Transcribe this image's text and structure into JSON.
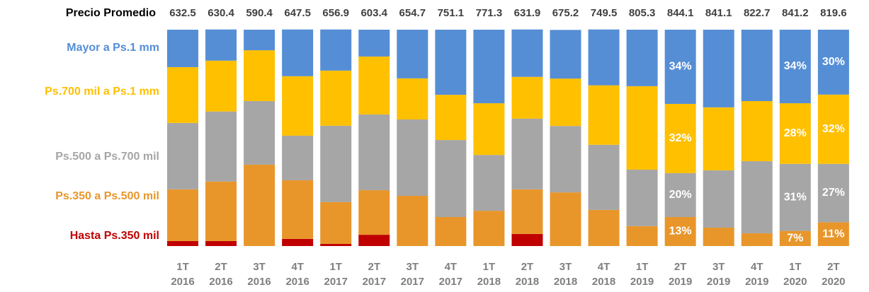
{
  "chart_data": {
    "type": "stacked_bar",
    "price_label": "Precio Promedio",
    "prices": [
      632.5,
      630.4,
      590.4,
      647.5,
      656.9,
      603.4,
      654.7,
      751.1,
      771.3,
      631.9,
      675.2,
      749.5,
      805.3,
      844.1,
      841.1,
      822.7,
      841.2,
      819.6
    ],
    "categories": [
      [
        "1T",
        "2016"
      ],
      [
        "2T",
        "2016"
      ],
      [
        "3T",
        "2016"
      ],
      [
        "4T",
        "2016"
      ],
      [
        "1T",
        "2017"
      ],
      [
        "2T",
        "2017"
      ],
      [
        "3T",
        "2017"
      ],
      [
        "4T",
        "2017"
      ],
      [
        "1T",
        "2018"
      ],
      [
        "2T",
        "2018"
      ],
      [
        "3T",
        "2018"
      ],
      [
        "4T",
        "2018"
      ],
      [
        "1T",
        "2019"
      ],
      [
        "2T",
        "2019"
      ],
      [
        "3T",
        "2019"
      ],
      [
        "4T",
        "2019"
      ],
      [
        "1T",
        "2020"
      ],
      [
        "2T",
        "2020"
      ]
    ],
    "ylim": [
      0,
      100
    ],
    "series": [
      {
        "name": "Hasta Ps.350 mil",
        "color": "#c00000",
        "values": [
          2.3,
          2.3,
          0,
          3.3,
          1.0,
          5.2,
          0,
          0,
          0,
          5.6,
          0,
          0,
          0,
          0,
          0,
          0,
          0,
          0
        ]
      },
      {
        "name": "Ps.350 a Ps.500 mil",
        "color": "#e8962a",
        "values": [
          23.9,
          27.5,
          37.6,
          27.1,
          19.3,
          20.6,
          23.2,
          13.4,
          16.3,
          20.6,
          24.8,
          16.7,
          9.2,
          13.4,
          8.5,
          5.9,
          7,
          11
        ],
        "value_labels": [
          null,
          null,
          null,
          null,
          null,
          null,
          null,
          null,
          null,
          null,
          null,
          null,
          null,
          "13%",
          null,
          null,
          "7%",
          "11%"
        ]
      },
      {
        "name": "Ps.500 a Ps.700 mil",
        "color": "#a6a6a6",
        "values": [
          30.7,
          32.4,
          29.4,
          20.6,
          35.3,
          35.0,
          35.3,
          35.6,
          25.8,
          32.7,
          30.7,
          30.1,
          26.1,
          20.3,
          26.5,
          33.3,
          31,
          27
        ],
        "value_labels": [
          null,
          null,
          null,
          null,
          null,
          null,
          null,
          null,
          null,
          null,
          null,
          null,
          null,
          "20%",
          null,
          null,
          "31%",
          "27%"
        ]
      },
      {
        "name": "Ps.700 mil a Ps.1 mm",
        "color": "#ffc000",
        "values": [
          25.8,
          23.5,
          23.5,
          27.5,
          25.5,
          26.8,
          19.0,
          20.9,
          23.9,
          19.3,
          21.9,
          27.5,
          38.6,
          32.0,
          29.1,
          27.8,
          28,
          32
        ],
        "value_labels": [
          null,
          null,
          null,
          null,
          null,
          null,
          null,
          null,
          null,
          null,
          null,
          null,
          null,
          "32%",
          null,
          null,
          "28%",
          "32%"
        ]
      },
      {
        "name": "Mayor a Ps.1 mm",
        "color": "#558ed5",
        "values": [
          17.3,
          14.4,
          9.5,
          21.6,
          19.0,
          12.4,
          22.5,
          30.1,
          34.0,
          21.9,
          22.5,
          25.8,
          26.1,
          34.3,
          35.9,
          33.0,
          34,
          30
        ],
        "value_labels": [
          null,
          null,
          null,
          null,
          null,
          null,
          null,
          null,
          null,
          null,
          null,
          null,
          null,
          "34%",
          null,
          null,
          "34%",
          "30%"
        ]
      }
    ]
  }
}
